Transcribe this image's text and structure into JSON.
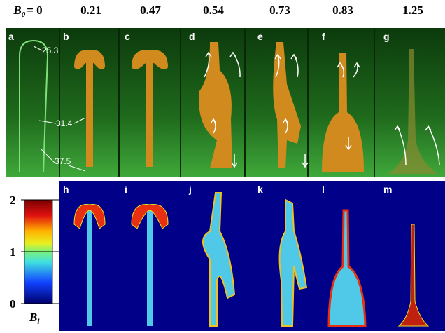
{
  "header": {
    "first_label": {
      "symbol": "B",
      "subscript": "0",
      "text": "= 0"
    },
    "labels": [
      "0.21",
      "0.47",
      "0.54",
      "0.73",
      "0.83",
      "1.25"
    ]
  },
  "photo_panels": [
    "a",
    "b",
    "c",
    "d",
    "e",
    "f",
    "g"
  ],
  "annotations": [
    "25.3",
    "31.4",
    "37.5"
  ],
  "simulation_panels": [
    "h",
    "i",
    "j",
    "k",
    "l",
    "m"
  ],
  "colorbar": {
    "lim": [
      0,
      2
    ],
    "ticks": [
      0,
      1,
      2
    ],
    "label": {
      "symbol": "B",
      "subscript": "l"
    }
  }
}
